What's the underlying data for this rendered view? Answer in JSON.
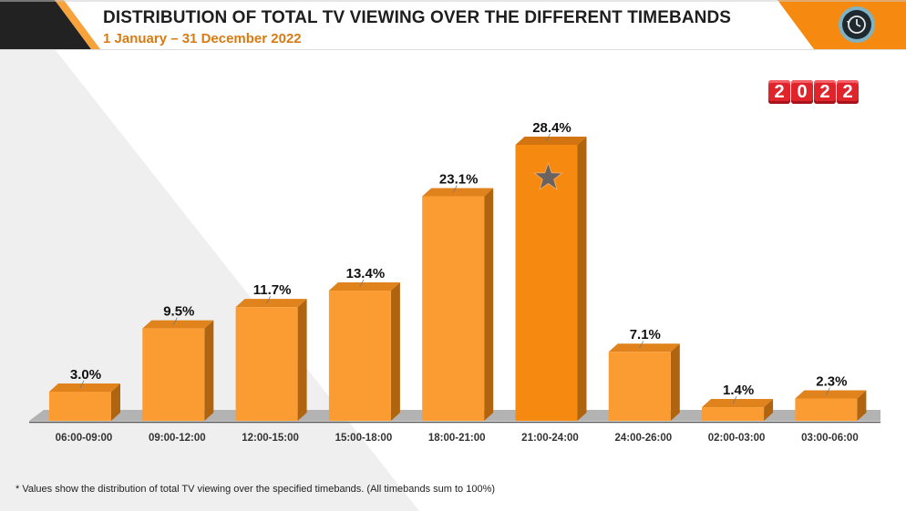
{
  "header": {
    "title": "DISTRIBUTION OF TOTAL TV VIEWING OVER THE DIFFERENT TIMEBANDS",
    "subtitle": "1 January – 31 December 2022",
    "icon": "history-clock-icon",
    "year_badge": [
      "2",
      "0",
      "2",
      "2"
    ]
  },
  "colors": {
    "bar": "#fa9c32",
    "bar_highlight": "#f68a10",
    "bar_side": "#b0640f",
    "accent": "#f68a10",
    "dark": "#222222",
    "floor": "#b3b3b3"
  },
  "chart_data": {
    "type": "bar",
    "title": "DISTRIBUTION OF TOTAL TV VIEWING OVER THE DIFFERENT TIMEBANDS",
    "subtitle": "1 January – 31 December 2022",
    "xlabel": "",
    "ylabel": "",
    "ylim": [
      0,
      30
    ],
    "grid": false,
    "categories": [
      "06:00-09:00",
      "09:00-12:00",
      "12:00-15:00",
      "15:00-18:00",
      "18:00-21:00",
      "21:00-24:00",
      "24:00-26:00",
      "02:00-03:00",
      "03:00-06:00"
    ],
    "values": [
      3.0,
      9.5,
      11.7,
      13.4,
      23.1,
      28.4,
      7.1,
      1.4,
      2.3
    ],
    "data_labels": [
      "3.0%",
      "9.5%",
      "11.7%",
      "13.4%",
      "23.1%",
      "28.4%",
      "7.1%",
      "1.4%",
      "2.3%"
    ],
    "highlight_index": 5,
    "highlight_marker": "star-icon"
  },
  "footnote": "* Values show the distribution of total TV viewing over the specified timebands. (All timebands sum to 100%)"
}
